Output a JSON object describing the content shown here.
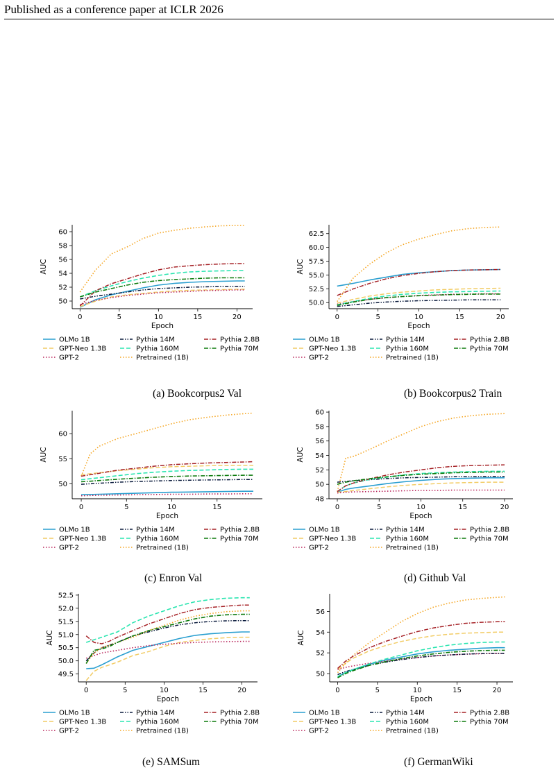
{
  "header": {
    "text": "Published as a conference paper at ICLR 2026"
  },
  "legend_labels": [
    "OLMo 1B",
    "GPT-Neo 1.3B",
    "GPT-2",
    "Pythia 14M",
    "Pythia 160M",
    "Pretrained (1B)",
    "Pythia 2.8B",
    "Pythia 70M"
  ],
  "colors": {
    "OLMo 1B": "#2a9fd0",
    "GPT-Neo 1.3B": "#f2cc65",
    "GPT-2": "#b8245a",
    "Pythia 14M": "#0a1a3c",
    "Pythia 160M": "#2ae5b0",
    "Pretrained (1B)": "#f5a623",
    "Pythia 2.8B": "#a52025",
    "Pythia 70M": "#0c7a0c"
  },
  "chart_data": [
    {
      "type": "line",
      "caption": "(a) Bookcorpus2 Val",
      "xlabel": "Epoch",
      "ylabel": "AUC",
      "xlim": [
        -1,
        22
      ],
      "ylim": [
        48.9,
        61.0
      ],
      "xticks": [
        0,
        5,
        10,
        15,
        20
      ],
      "yticks": [
        50,
        52,
        54,
        56,
        58,
        60
      ],
      "x": [
        0,
        2,
        4,
        6,
        8,
        10,
        12,
        14,
        16,
        18,
        20,
        21
      ],
      "series": [
        {
          "name": "OLMo 1B",
          "values": [
            49.1,
            50.2,
            50.9,
            51.4,
            51.9,
            52.3,
            52.55,
            52.7,
            52.8,
            52.85,
            52.9,
            52.9
          ]
        },
        {
          "name": "GPT-Neo 1.3B",
          "values": [
            49.2,
            50.0,
            50.6,
            50.9,
            51.1,
            51.3,
            51.45,
            51.55,
            51.6,
            51.65,
            51.7,
            51.7
          ]
        },
        {
          "name": "GPT-2",
          "values": [
            49.5,
            50.1,
            50.5,
            50.8,
            51.0,
            51.2,
            51.3,
            51.4,
            51.5,
            51.55,
            51.6,
            51.6
          ]
        },
        {
          "name": "Pythia 14M",
          "values": [
            50.3,
            50.7,
            51.0,
            51.3,
            51.6,
            51.8,
            51.9,
            52.0,
            52.05,
            52.1,
            52.1,
            52.1
          ]
        },
        {
          "name": "Pythia 160M",
          "values": [
            50.6,
            51.5,
            52.2,
            52.8,
            53.3,
            53.7,
            54.0,
            54.2,
            54.3,
            54.35,
            54.4,
            54.4
          ]
        },
        {
          "name": "Pretrained (1B)",
          "values": [
            51.3,
            54.5,
            56.8,
            57.8,
            59.0,
            59.8,
            60.2,
            60.5,
            60.7,
            60.85,
            60.9,
            60.9
          ]
        },
        {
          "name": "Pythia 2.8B",
          "values": [
            49.3,
            51.5,
            52.5,
            53.2,
            53.9,
            54.5,
            54.9,
            55.1,
            55.25,
            55.35,
            55.4,
            55.4
          ]
        },
        {
          "name": "Pythia 70M",
          "values": [
            50.6,
            51.3,
            51.8,
            52.3,
            52.7,
            52.95,
            53.1,
            53.2,
            53.3,
            53.35,
            53.35,
            53.35
          ]
        }
      ]
    },
    {
      "type": "line",
      "caption": "(b) Bookcorpus2 Train",
      "xlabel": "Epoch",
      "ylabel": "AUC",
      "xlim": [
        -1,
        21
      ],
      "ylim": [
        48.9,
        64.1
      ],
      "xticks": [
        0,
        5,
        10,
        15,
        20
      ],
      "yticks": [
        50.0,
        52.5,
        55.0,
        57.5,
        60.0,
        62.5
      ],
      "x": [
        0,
        2,
        4,
        6,
        8,
        10,
        12,
        14,
        16,
        18,
        20
      ],
      "series": [
        {
          "name": "OLMo 1B",
          "values": [
            53.0,
            53.5,
            54.1,
            54.6,
            55.1,
            55.4,
            55.6,
            55.8,
            55.9,
            55.95,
            56.0
          ]
        },
        {
          "name": "GPT-Neo 1.3B",
          "values": [
            49.9,
            50.6,
            51.2,
            51.6,
            51.9,
            52.1,
            52.3,
            52.4,
            52.5,
            52.55,
            52.6
          ]
        },
        {
          "name": "GPT-2",
          "values": [
            49.7,
            50.2,
            50.6,
            50.9,
            51.1,
            51.3,
            51.4,
            51.5,
            51.55,
            51.6,
            51.6
          ]
        },
        {
          "name": "Pythia 14M",
          "values": [
            49.3,
            49.6,
            49.9,
            50.1,
            50.25,
            50.35,
            50.4,
            50.45,
            50.5,
            50.5,
            50.5
          ]
        },
        {
          "name": "Pythia 160M",
          "values": [
            49.6,
            50.2,
            50.8,
            51.2,
            51.5,
            51.7,
            51.85,
            51.95,
            52.0,
            52.05,
            52.1
          ]
        },
        {
          "name": "Pretrained (1B)",
          "values": [
            50.2,
            54.5,
            57.0,
            59.0,
            60.5,
            61.5,
            62.3,
            63.0,
            63.4,
            63.6,
            63.7
          ]
        },
        {
          "name": "Pythia 2.8B",
          "values": [
            51.3,
            52.5,
            53.5,
            54.3,
            54.9,
            55.3,
            55.6,
            55.8,
            55.9,
            55.95,
            56.0
          ]
        },
        {
          "name": "Pythia 70M",
          "values": [
            49.5,
            50.1,
            50.6,
            50.9,
            51.1,
            51.25,
            51.35,
            51.45,
            51.5,
            51.55,
            51.55
          ]
        }
      ]
    },
    {
      "type": "line",
      "caption": "(c) Enron Val",
      "xlabel": "Epoch",
      "ylabel": "AUC",
      "xlim": [
        -1,
        20
      ],
      "ylim": [
        47.0,
        64.6
      ],
      "xticks": [
        0,
        5,
        10,
        15
      ],
      "yticks": [
        50,
        55,
        60
      ],
      "x": [
        0,
        1,
        2,
        4,
        6,
        8,
        10,
        12,
        14,
        16,
        18,
        19
      ],
      "series": [
        {
          "name": "OLMo 1B",
          "values": [
            47.8,
            47.85,
            47.9,
            48.0,
            48.1,
            48.2,
            48.3,
            48.35,
            48.4,
            48.45,
            48.5,
            48.5
          ]
        },
        {
          "name": "GPT-Neo 1.3B",
          "values": [
            51.8,
            52.0,
            52.2,
            52.6,
            52.9,
            53.2,
            53.4,
            53.5,
            53.6,
            53.65,
            53.7,
            53.7
          ]
        },
        {
          "name": "GPT-2",
          "values": [
            47.6,
            47.65,
            47.7,
            47.75,
            47.8,
            47.85,
            47.9,
            47.9,
            47.95,
            47.95,
            48.0,
            48.0
          ]
        },
        {
          "name": "Pythia 14M",
          "values": [
            49.9,
            50.0,
            50.1,
            50.3,
            50.45,
            50.55,
            50.65,
            50.7,
            50.75,
            50.8,
            50.85,
            50.85
          ]
        },
        {
          "name": "Pythia 160M",
          "values": [
            50.8,
            51.0,
            51.2,
            51.6,
            52.0,
            52.3,
            52.5,
            52.65,
            52.75,
            52.85,
            52.9,
            52.9
          ]
        },
        {
          "name": "Pretrained (1B)",
          "values": [
            51.5,
            56.0,
            57.5,
            59.0,
            60.0,
            61.0,
            62.0,
            62.8,
            63.3,
            63.7,
            64.0,
            64.1
          ]
        },
        {
          "name": "Pythia 2.8B",
          "values": [
            51.5,
            51.8,
            52.1,
            52.7,
            53.1,
            53.5,
            53.8,
            54.0,
            54.15,
            54.25,
            54.35,
            54.4
          ]
        },
        {
          "name": "Pythia 70M",
          "values": [
            50.4,
            50.5,
            50.65,
            50.9,
            51.1,
            51.3,
            51.45,
            51.55,
            51.6,
            51.65,
            51.7,
            51.7
          ]
        }
      ]
    },
    {
      "type": "line",
      "caption": "(d) Github Val",
      "xlabel": "Epoch",
      "ylabel": "AUC",
      "xlim": [
        -1,
        21
      ],
      "ylim": [
        48.0,
        60.2
      ],
      "xticks": [
        0,
        5,
        10,
        15,
        20
      ],
      "yticks": [
        48,
        50,
        52,
        54,
        56,
        58,
        60
      ],
      "x": [
        0,
        1,
        2,
        4,
        6,
        8,
        10,
        12,
        14,
        16,
        18,
        20
      ],
      "series": [
        {
          "name": "OLMo 1B",
          "values": [
            48.9,
            49.3,
            49.5,
            49.8,
            50.1,
            50.35,
            50.55,
            50.7,
            50.8,
            50.85,
            50.9,
            50.9
          ]
        },
        {
          "name": "GPT-Neo 1.3B",
          "values": [
            48.9,
            49.0,
            49.15,
            49.4,
            49.65,
            49.85,
            50.0,
            50.1,
            50.2,
            50.25,
            50.3,
            50.3
          ]
        },
        {
          "name": "GPT-2",
          "values": [
            48.8,
            48.9,
            48.95,
            49.0,
            49.05,
            49.1,
            49.15,
            49.15,
            49.2,
            49.2,
            49.2,
            49.2
          ]
        },
        {
          "name": "Pythia 14M",
          "values": [
            50.3,
            50.4,
            50.5,
            50.65,
            50.8,
            50.9,
            50.95,
            51.0,
            51.05,
            51.05,
            51.1,
            51.1
          ]
        },
        {
          "name": "Pythia 160M",
          "values": [
            49.0,
            49.8,
            50.2,
            50.7,
            51.0,
            51.3,
            51.5,
            51.6,
            51.7,
            51.75,
            51.8,
            51.8
          ]
        },
        {
          "name": "Pretrained (1B)",
          "values": [
            49.0,
            53.6,
            53.9,
            54.9,
            56.0,
            57.0,
            58.0,
            58.7,
            59.2,
            59.5,
            59.7,
            59.8
          ]
        },
        {
          "name": "Pythia 2.8B",
          "values": [
            49.0,
            49.8,
            50.2,
            50.8,
            51.3,
            51.7,
            52.0,
            52.3,
            52.5,
            52.6,
            52.65,
            52.7
          ]
        },
        {
          "name": "Pythia 70M",
          "values": [
            50.0,
            50.3,
            50.5,
            50.8,
            51.05,
            51.25,
            51.4,
            51.5,
            51.6,
            51.65,
            51.7,
            51.7
          ]
        }
      ]
    },
    {
      "type": "line",
      "caption": "(e) SAMSum",
      "xlabel": "Epoch",
      "ylabel": "AUC",
      "xlim": [
        -1,
        22
      ],
      "ylim": [
        49.2,
        52.55
      ],
      "xticks": [
        0,
        5,
        10,
        15,
        20
      ],
      "yticks": [
        49.5,
        50.0,
        50.5,
        51.0,
        51.5,
        52.0,
        52.5
      ],
      "x": [
        0,
        1,
        2,
        3,
        4,
        6,
        8,
        10,
        12,
        14,
        16,
        18,
        20,
        21
      ],
      "series": [
        {
          "name": "OLMo 1B",
          "values": [
            49.7,
            49.72,
            49.85,
            50.0,
            50.15,
            50.4,
            50.55,
            50.7,
            50.85,
            50.97,
            51.03,
            51.07,
            51.1,
            51.1
          ]
        },
        {
          "name": "GPT-Neo 1.3B",
          "values": [
            49.25,
            49.6,
            49.75,
            49.85,
            49.95,
            50.2,
            50.35,
            50.55,
            50.7,
            50.78,
            50.84,
            50.88,
            50.9,
            50.9
          ]
        },
        {
          "name": "GPT-2",
          "values": [
            50.1,
            50.2,
            50.3,
            50.35,
            50.4,
            50.5,
            50.58,
            50.63,
            50.67,
            50.7,
            50.72,
            50.73,
            50.74,
            50.74
          ]
        },
        {
          "name": "Pythia 14M",
          "values": [
            50.0,
            50.3,
            50.5,
            50.6,
            50.7,
            50.95,
            51.1,
            51.25,
            51.37,
            51.45,
            51.5,
            51.52,
            51.53,
            51.53
          ]
        },
        {
          "name": "Pythia 160M",
          "values": [
            50.7,
            50.8,
            50.9,
            51.0,
            51.1,
            51.45,
            51.7,
            51.9,
            52.1,
            52.25,
            52.33,
            52.38,
            52.4,
            52.4
          ]
        },
        {
          "name": "Pretrained (1B)",
          "values": [
            49.9,
            50.3,
            50.5,
            50.6,
            50.7,
            50.9,
            51.15,
            51.35,
            51.55,
            51.7,
            51.8,
            51.87,
            51.9,
            51.9
          ]
        },
        {
          "name": "Pythia 2.8B",
          "values": [
            50.95,
            50.7,
            50.65,
            50.75,
            50.9,
            51.15,
            51.4,
            51.6,
            51.8,
            51.95,
            52.03,
            52.08,
            52.12,
            52.12
          ]
        },
        {
          "name": "Pythia 70M",
          "values": [
            49.9,
            50.4,
            50.45,
            50.55,
            50.7,
            50.95,
            51.15,
            51.3,
            51.45,
            51.6,
            51.7,
            51.75,
            51.77,
            51.77
          ]
        }
      ]
    },
    {
      "type": "line",
      "caption": "(f) GermanWiki",
      "xlabel": "Epoch",
      "ylabel": "AUC",
      "xlim": [
        -1,
        22
      ],
      "ylim": [
        49.2,
        57.7
      ],
      "xticks": [
        0,
        5,
        10,
        15,
        20
      ],
      "yticks": [
        50,
        52,
        54,
        56
      ],
      "x": [
        0,
        1,
        2,
        4,
        6,
        8,
        10,
        12,
        14,
        16,
        18,
        20,
        21
      ],
      "series": [
        {
          "name": "OLMo 1B",
          "values": [
            49.7,
            50.1,
            50.4,
            50.9,
            51.3,
            51.6,
            51.9,
            52.1,
            52.25,
            52.35,
            52.45,
            52.5,
            52.5
          ]
        },
        {
          "name": "GPT-Neo 1.3B",
          "values": [
            50.4,
            51.0,
            51.5,
            52.2,
            52.7,
            53.1,
            53.4,
            53.65,
            53.8,
            53.9,
            53.95,
            54.0,
            54.0
          ]
        },
        {
          "name": "GPT-2",
          "values": [
            50.4,
            50.6,
            50.75,
            51.0,
            51.2,
            51.4,
            51.55,
            51.7,
            51.8,
            51.87,
            51.92,
            51.95,
            51.95
          ]
        },
        {
          "name": "Pythia 14M",
          "values": [
            49.9,
            50.2,
            50.4,
            50.8,
            51.1,
            51.35,
            51.55,
            51.7,
            51.8,
            51.88,
            51.93,
            51.95,
            51.95
          ]
        },
        {
          "name": "Pythia 160M",
          "values": [
            49.7,
            50.1,
            50.4,
            50.95,
            51.4,
            51.8,
            52.2,
            52.5,
            52.75,
            52.9,
            53.0,
            53.05,
            53.05
          ]
        },
        {
          "name": "Pretrained (1B)",
          "values": [
            50.1,
            51.0,
            51.8,
            53.0,
            54.0,
            55.0,
            55.8,
            56.4,
            56.8,
            57.1,
            57.25,
            57.35,
            57.4
          ]
        },
        {
          "name": "Pythia 2.8B",
          "values": [
            50.5,
            51.2,
            51.7,
            52.5,
            53.1,
            53.6,
            54.05,
            54.4,
            54.65,
            54.85,
            54.95,
            55.0,
            55.0
          ]
        },
        {
          "name": "Pythia 70M",
          "values": [
            49.6,
            50.0,
            50.3,
            50.8,
            51.15,
            51.45,
            51.7,
            51.9,
            52.05,
            52.15,
            52.22,
            52.25,
            52.25
          ]
        }
      ]
    }
  ]
}
